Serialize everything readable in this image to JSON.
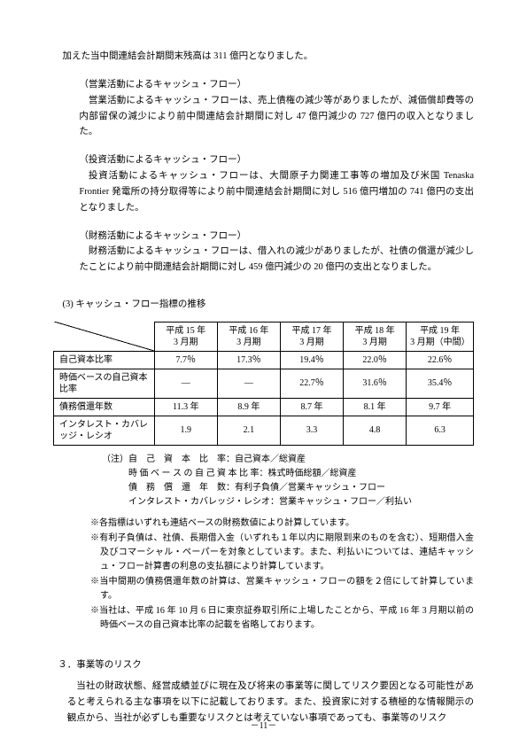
{
  "p_intro": "加えた当中間連結会計期間末残高は 311 億円となりました。",
  "cf_operating": {
    "head": "（営業活動によるキャッシュ・フロー）",
    "body": "営業活動によるキャッシュ・フローは、売上債権の減少等がありましたが、減価償却費等の内部留保の減少により前中間連結会計期間に対し 47 億円減少の 727 億円の収入となりました。"
  },
  "cf_investing": {
    "head": "（投資活動によるキャッシュ・フロー）",
    "body": "投資活動によるキャッシュ・フローは、大間原子力関連工事等の増加及び米国 Tenaska Frontier 発電所の持分取得等により前中間連結会計期間に対し 516 億円増加の 741 億円の支出となりました。"
  },
  "cf_financing": {
    "head": "（財務活動によるキャッシュ・フロー）",
    "body": "財務活動によるキャッシュ・フローは、借入れの減少がありましたが、社債の償還が減少したことにより前中間連結会計期間に対し 459 億円減少の 20 億円の支出となりました。"
  },
  "table_section_title": "(3) キャッシュ・フロー指標の推移",
  "table": {
    "col_headers": [
      "平成 15 年\n3 月期",
      "平成 16 年\n3 月期",
      "平成 17 年\n3 月期",
      "平成 18 年\n3 月期",
      "平成 19 年\n3 月期（中間）"
    ],
    "rows": [
      {
        "label": "自己資本比率",
        "cells": [
          "7.7％",
          "17.3％",
          "19.4％",
          "22.0％",
          "22.6％"
        ]
      },
      {
        "label": "時価ベースの自己資本比率",
        "cells": [
          "―",
          "―",
          "22.7％",
          "31.6％",
          "35.4％"
        ]
      },
      {
        "label": "債務償還年数",
        "cells": [
          "11.3 年",
          "8.9 年",
          "8.7 年",
          "8.1 年",
          "9.7 年"
        ]
      },
      {
        "label": "インタレスト・カバレッジ・レシオ",
        "cells": [
          "1.9",
          "2.1",
          "3.3",
          "4.8",
          "6.3"
        ]
      }
    ],
    "col_widths": [
      "24%",
      "15%",
      "15%",
      "15%",
      "15%",
      "16%"
    ]
  },
  "notes_head": "（注）",
  "notes": [
    {
      "label": "自　己　資　本　比　率",
      "value": "：自己資本／総資産"
    },
    {
      "label": "時 価 ベ ー ス の 自 己 資 本 比 率",
      "value": "：株式時価総額／総資産"
    },
    {
      "label": "債　務　償　還　年　数",
      "value": "：有利子負債／営業キャッシュ・フロー"
    },
    {
      "label": "インタレスト・カバレッジ・レシオ",
      "value": "：営業キャッシュ・フロー／利払い"
    }
  ],
  "stars": [
    "※各指標はいずれも連結ベースの財務数値により計算しています。",
    "※有利子負債は、社債、長期借入金（いずれも１年以内に期限到来のものを含む）、短期借入金及びコマーシャル・ペーパーを対象としています。また、利払いについては、連結キャッシュ・フロー計算書の利息の支払額により計算しています。",
    "※当中間期の債務償還年数の計算は、営業キャッシュ・フローの額を２倍にして計算しています。",
    "※当社は、平成 16 年 10 月 6 日に東京証券取引所に上場したことから、平成 16 年 3 月期以前の時価ベースの自己資本比率の記載を省略しております。"
  ],
  "sec3": {
    "head": "３．事業等のリスク",
    "body": "当社の財政状態、経営成績並びに現在及び将来の事業等に関してリスク要因となる可能性があると考えられる主な事項を以下に記載しております。また、投資家に対する積極的な情報開示の観点から、当社が必ずしも重要なリスクとは考えていない事項であっても、事業等のリスク"
  },
  "page_number": "－11－"
}
